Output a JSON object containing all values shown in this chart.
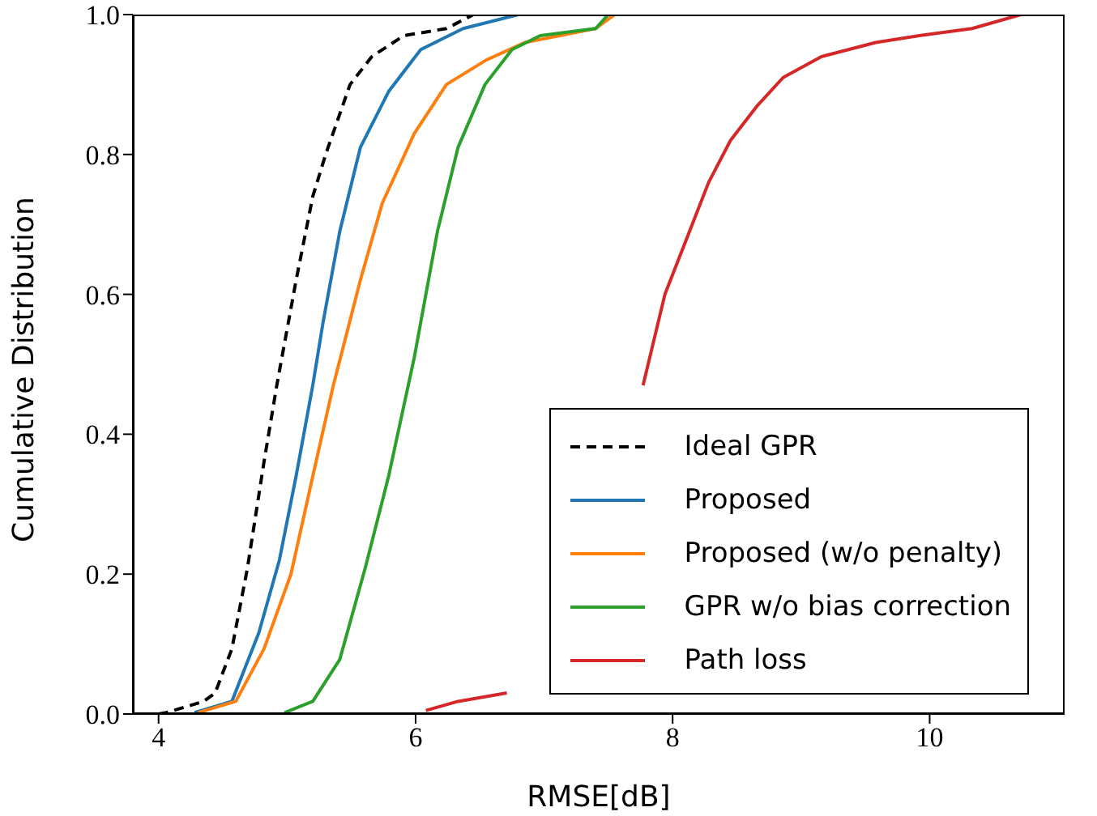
{
  "chart_data": {
    "type": "line",
    "xlabel": "RMSE[dB]",
    "ylabel": "Cumulative Distribution",
    "xlim": [
      3.8,
      11.05
    ],
    "ylim": [
      0,
      1
    ],
    "xticks": [
      4,
      6,
      8,
      10
    ],
    "yticks": [
      {
        "value": 0,
        "label": "0.0"
      },
      0.2,
      0.4,
      0.6,
      0.8,
      {
        "value": 1,
        "label": "1.0"
      }
    ],
    "grid": false,
    "legend": "bottom right",
    "marker": "none",
    "series": [
      {
        "name": "Ideal GPR",
        "color": "#000000",
        "line_style": "dashed",
        "x": [
          4.0,
          4.06,
          4.35,
          4.44,
          4.57,
          4.69,
          4.82,
          4.92,
          5.07,
          5.2,
          5.3,
          5.49,
          5.66,
          5.91,
          6.24,
          6.45,
          7.0
        ],
        "values": [
          0,
          0.002,
          0.018,
          0.03,
          0.093,
          0.207,
          0.36,
          0.47,
          0.62,
          0.74,
          0.8,
          0.9,
          0.94,
          0.97,
          0.98,
          1,
          1
        ]
      },
      {
        "name": "Proposed",
        "color": "#1f77b4",
        "x": [
          4.28,
          4.57,
          4.78,
          4.94,
          5.07,
          5.2,
          5.28,
          5.41,
          5.57,
          5.79,
          6.04,
          6.37,
          6.8
        ],
        "values": [
          0.002,
          0.018,
          0.116,
          0.22,
          0.34,
          0.47,
          0.56,
          0.69,
          0.81,
          0.89,
          0.95,
          0.98,
          1
        ]
      },
      {
        "name": "Proposed (w/o penalty)",
        "color": "#ff7f0e",
        "x": [
          4.31,
          4.6,
          4.82,
          5.03,
          5.2,
          5.36,
          5.57,
          5.74,
          5.99,
          6.24,
          6.55,
          6.85,
          7.4,
          7.55
        ],
        "values": [
          0.002,
          0.018,
          0.093,
          0.2,
          0.34,
          0.47,
          0.62,
          0.73,
          0.83,
          0.9,
          0.935,
          0.96,
          0.98,
          1
        ]
      },
      {
        "name": "GPR w/o bias correction",
        "color": "#2ca02c",
        "x": [
          4.98,
          5.2,
          5.41,
          5.61,
          5.79,
          5.99,
          6.17,
          6.33,
          6.54,
          6.75,
          6.97,
          7.4,
          7.5
        ],
        "values": [
          0.002,
          0.018,
          0.078,
          0.21,
          0.34,
          0.51,
          0.69,
          0.81,
          0.9,
          0.95,
          0.97,
          0.98,
          1
        ]
      },
      {
        "name": "Path loss",
        "color": "#d62728",
        "x": [
          6.08,
          6.33,
          6.71,
          7.2,
          7.77,
          7.94,
          8.11,
          8.28,
          8.45,
          8.66,
          8.86,
          9.16,
          9.58,
          9.92,
          10.33,
          10.71
        ],
        "values": [
          0.005,
          0.018,
          0.03,
          null,
          0.47,
          0.6,
          0.68,
          0.76,
          0.82,
          0.87,
          0.91,
          0.94,
          0.96,
          0.97,
          0.98,
          1
        ]
      }
    ]
  }
}
